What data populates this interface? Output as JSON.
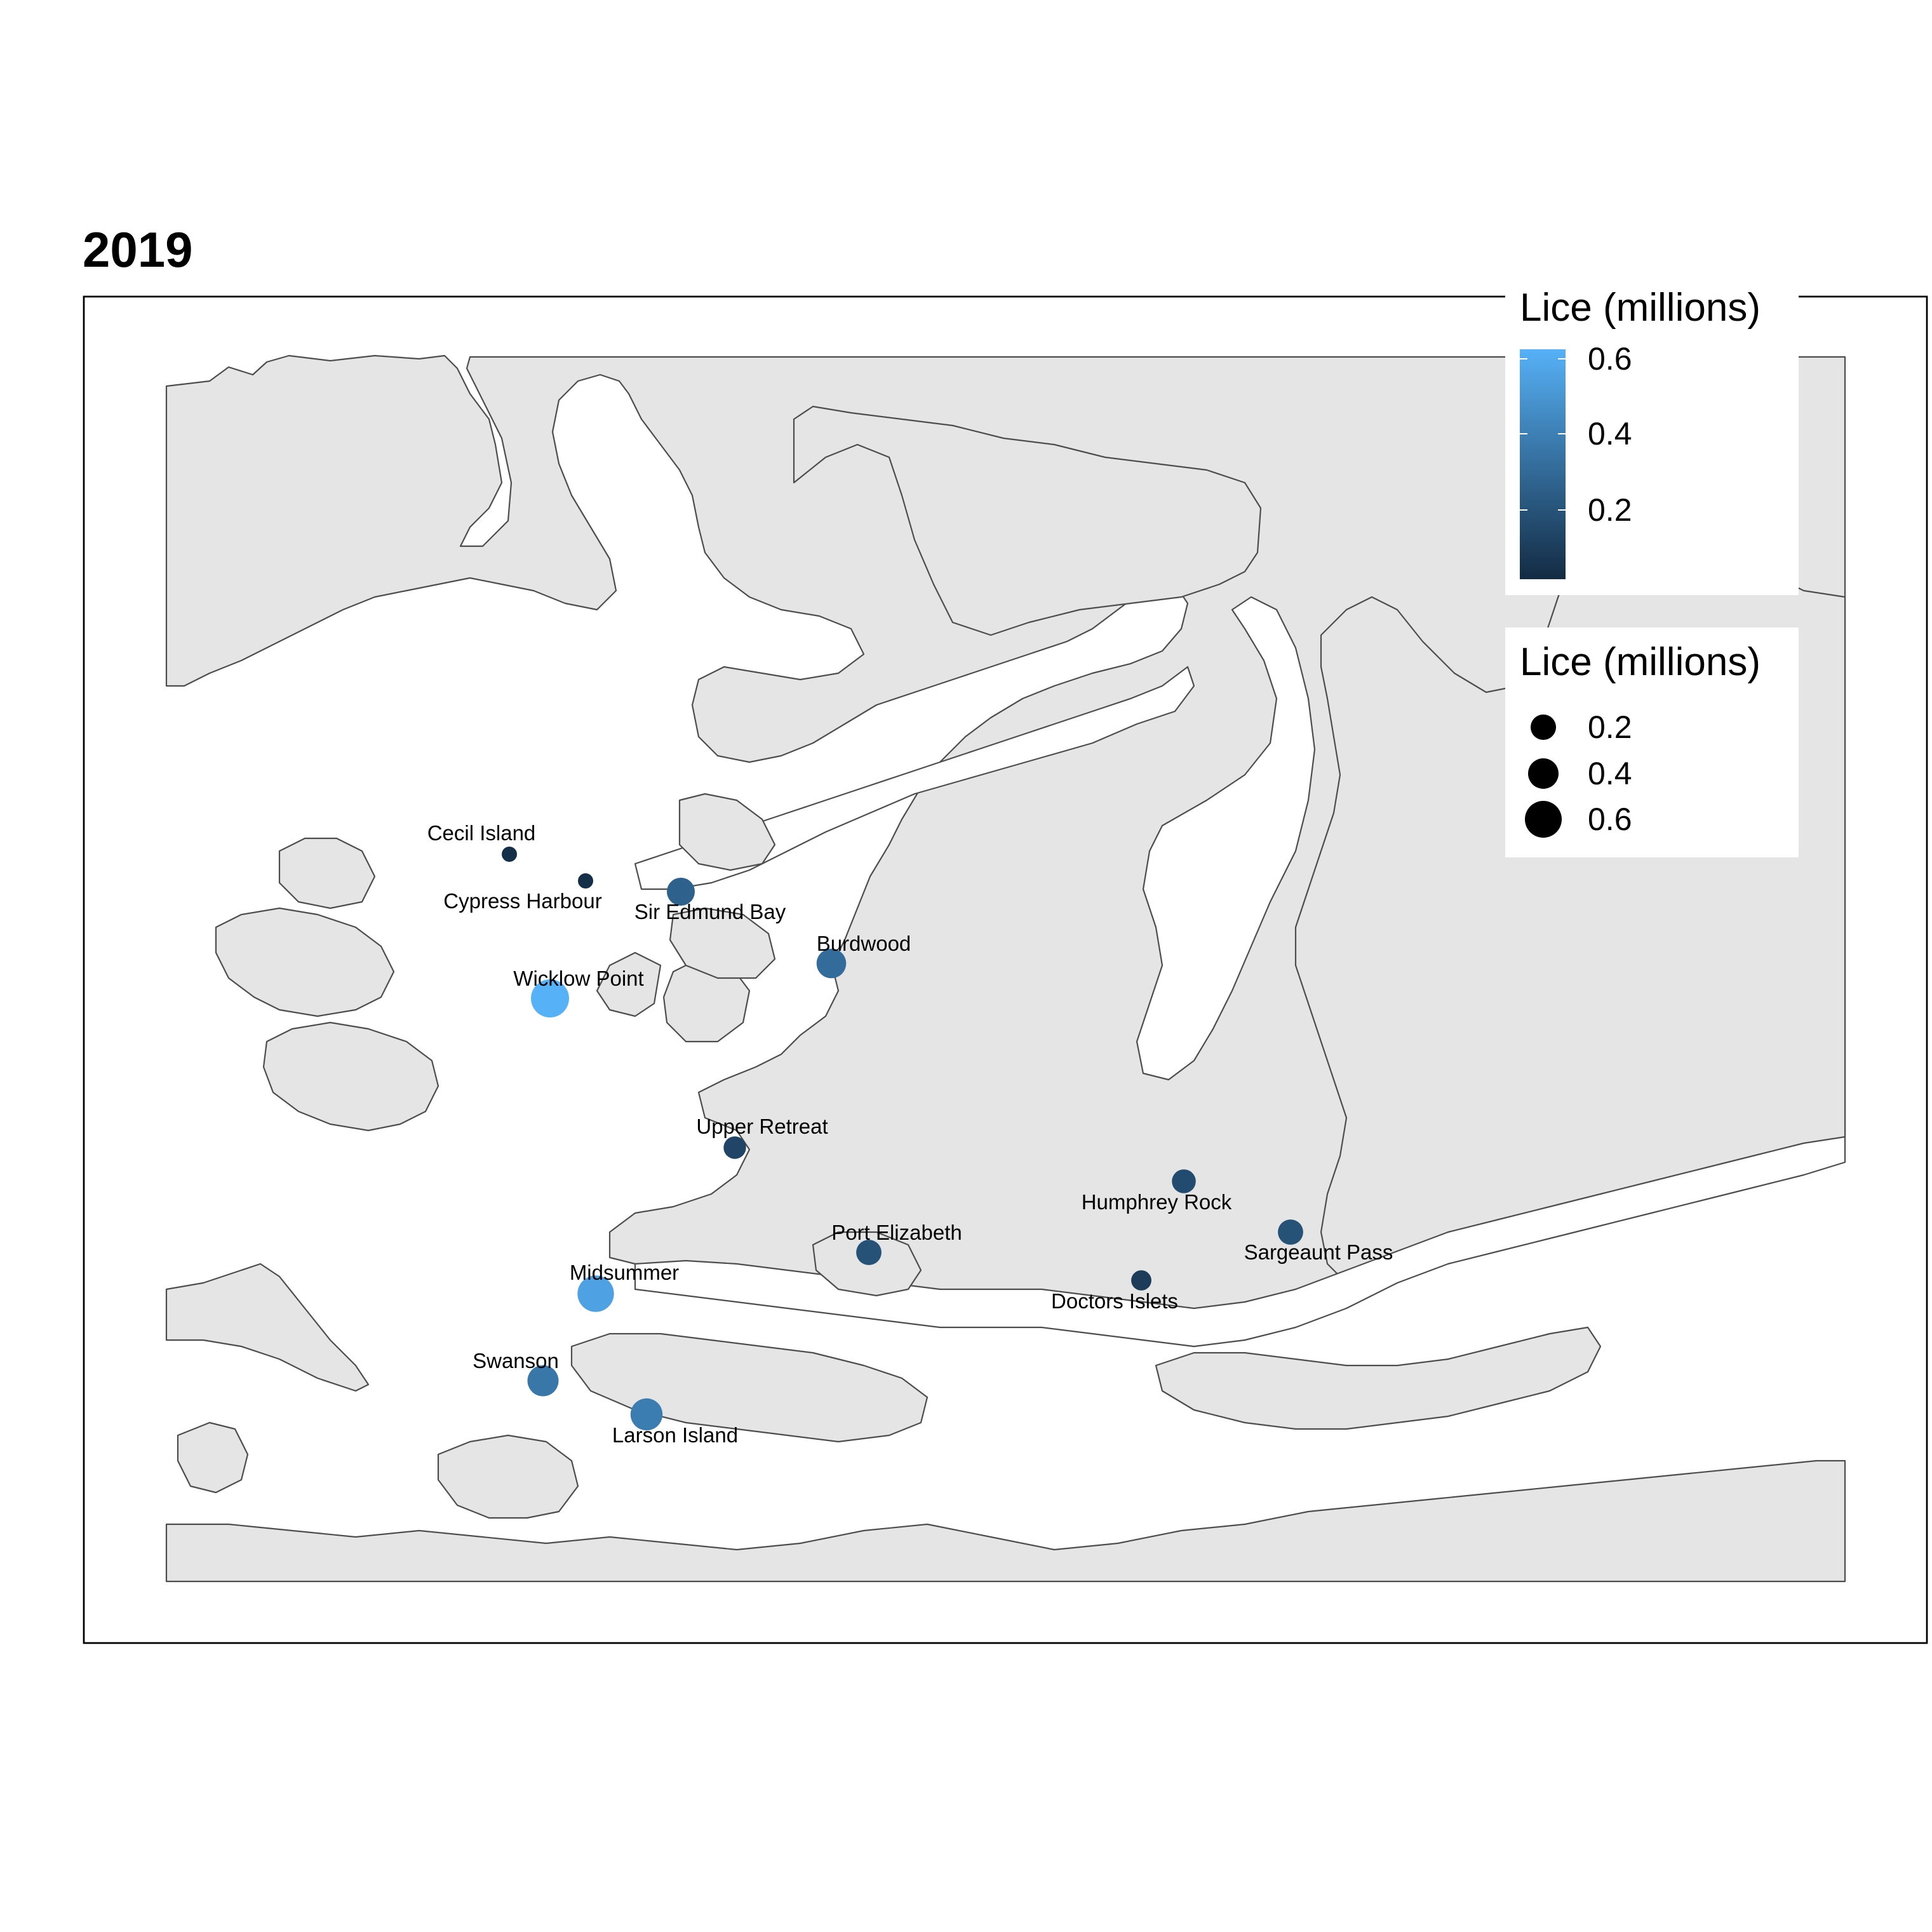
{
  "title": "2019",
  "legend": {
    "color_title": "Lice (millions)",
    "color_ticks": [
      "0.6",
      "0.4",
      "0.2"
    ],
    "color_low": "#132B43",
    "color_high": "#56B1F7",
    "size_title": "Lice (millions)",
    "size_ticks": [
      "0.2",
      "0.4",
      "0.6"
    ]
  },
  "colors": {
    "land": "#e5e5e5",
    "coastline": "#4d4d4d",
    "water": "#ffffff",
    "panel_border": "#000000"
  },
  "sites": [
    {
      "name": "Cecil Island",
      "lice": 0.02
    },
    {
      "name": "Cypress Harbour",
      "lice": 0.02
    },
    {
      "name": "Sir Edmund Bay",
      "lice": 0.25
    },
    {
      "name": "Burdwood",
      "lice": 0.3
    },
    {
      "name": "Wicklow Point",
      "lice": 0.62
    },
    {
      "name": "Upper Retreat",
      "lice": 0.12
    },
    {
      "name": "Humphrey Rock",
      "lice": 0.15
    },
    {
      "name": "Sargeaunt Pass",
      "lice": 0.18
    },
    {
      "name": "Port Elizabeth",
      "lice": 0.18
    },
    {
      "name": "Doctors Islets",
      "lice": 0.08
    },
    {
      "name": "Midsummer",
      "lice": 0.55
    },
    {
      "name": "Swanson",
      "lice": 0.35
    },
    {
      "name": "Larson Island",
      "lice": 0.38
    }
  ]
}
